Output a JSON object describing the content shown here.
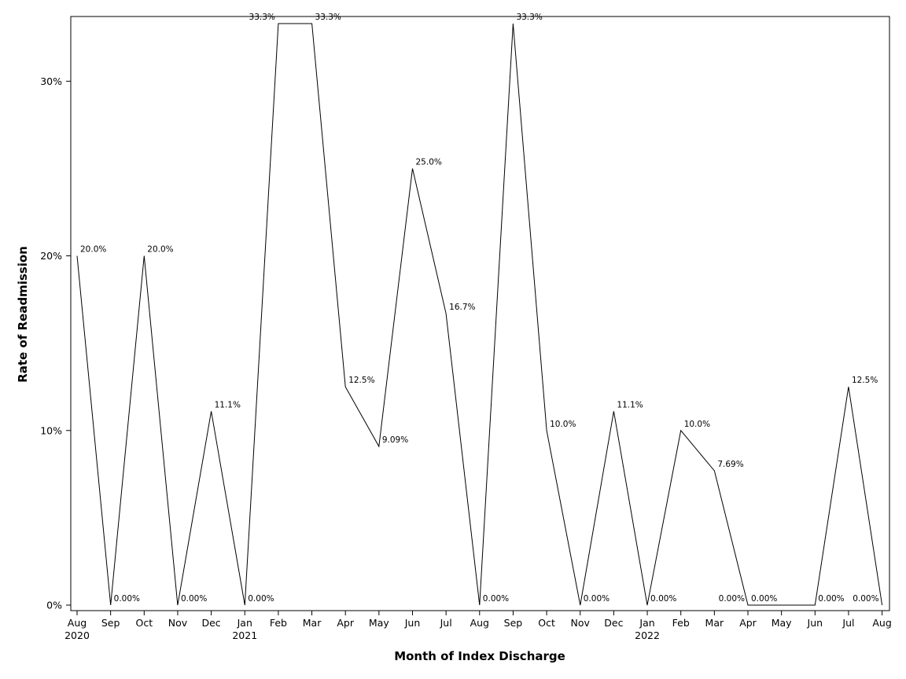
{
  "chart_data": {
    "type": "line",
    "title": "",
    "xlabel": "Month of Index Discharge",
    "ylabel": "Rate of Readmission",
    "ylim": [
      0,
      33.3
    ],
    "yticks": [
      {
        "value": 0,
        "label": "0%"
      },
      {
        "value": 10,
        "label": "10%"
      },
      {
        "value": 20,
        "label": "20%"
      },
      {
        "value": 30,
        "label": "30%"
      }
    ],
    "grid": false,
    "legend": "none",
    "categories": [
      {
        "month": "Aug",
        "year": "2020"
      },
      {
        "month": "Sep",
        "year": ""
      },
      {
        "month": "Oct",
        "year": ""
      },
      {
        "month": "Nov",
        "year": ""
      },
      {
        "month": "Dec",
        "year": ""
      },
      {
        "month": "Jan",
        "year": "2021"
      },
      {
        "month": "Feb",
        "year": ""
      },
      {
        "month": "Mar",
        "year": ""
      },
      {
        "month": "Apr",
        "year": ""
      },
      {
        "month": "May",
        "year": ""
      },
      {
        "month": "Jun",
        "year": ""
      },
      {
        "month": "Jul",
        "year": ""
      },
      {
        "month": "Aug",
        "year": ""
      },
      {
        "month": "Sep",
        "year": ""
      },
      {
        "month": "Oct",
        "year": ""
      },
      {
        "month": "Nov",
        "year": ""
      },
      {
        "month": "Dec",
        "year": ""
      },
      {
        "month": "Jan",
        "year": "2022"
      },
      {
        "month": "Feb",
        "year": ""
      },
      {
        "month": "Mar",
        "year": ""
      },
      {
        "month": "Apr",
        "year": ""
      },
      {
        "month": "May",
        "year": ""
      },
      {
        "month": "Jun",
        "year": ""
      },
      {
        "month": "Jul",
        "year": ""
      },
      {
        "month": "Aug",
        "year": ""
      }
    ],
    "series": [
      {
        "color": "#000000",
        "points": [
          {
            "x": 0,
            "y": 20.0,
            "label": "20.0%",
            "pos": "right"
          },
          {
            "x": 1,
            "y": 0,
            "label": "0.00%",
            "pos": "right"
          },
          {
            "x": 2,
            "y": 20.0,
            "label": "20.0%",
            "pos": "right"
          },
          {
            "x": 3,
            "y": 0,
            "label": "0.00%",
            "pos": "right"
          },
          {
            "x": 4,
            "y": 11.1,
            "label": "11.1%",
            "pos": "right"
          },
          {
            "x": 5,
            "y": 0,
            "label": "0.00%",
            "pos": "right"
          },
          {
            "x": 6,
            "y": 33.3,
            "label": "33.3%",
            "pos": "left"
          },
          {
            "x": 7,
            "y": 33.3,
            "label": "33.3%",
            "pos": "right"
          },
          {
            "x": 8,
            "y": 12.5,
            "label": "12.5%",
            "pos": "right"
          },
          {
            "x": 9,
            "y": 9.09,
            "label": "9.09%",
            "pos": "right"
          },
          {
            "x": 10,
            "y": 25.0,
            "label": "25.0%",
            "pos": "right"
          },
          {
            "x": 11,
            "y": 16.7,
            "label": "16.7%",
            "pos": "right"
          },
          {
            "x": 12,
            "y": 0,
            "label": "0.00%",
            "pos": "right"
          },
          {
            "x": 13,
            "y": 33.3,
            "label": "33.3%",
            "pos": "right"
          },
          {
            "x": 14,
            "y": 10.0,
            "label": "10.0%",
            "pos": "right"
          },
          {
            "x": 15,
            "y": 0,
            "label": "0.00%",
            "pos": "right"
          },
          {
            "x": 16,
            "y": 11.1,
            "label": "11.1%",
            "pos": "right"
          },
          {
            "x": 17,
            "y": 0,
            "label": "0.00%",
            "pos": "right"
          },
          {
            "x": 18,
            "y": 10.0,
            "label": "10.0%",
            "pos": "right"
          },
          {
            "x": 19,
            "y": 7.69,
            "label": "7.69%",
            "pos": "right"
          },
          {
            "x": 20,
            "y": 0,
            "label": "0.00%",
            "pos": "left"
          },
          {
            "x": 20,
            "y": 0,
            "label": "0.00%",
            "pos": "right"
          },
          {
            "x": 22,
            "y": 0,
            "label": "0.00%",
            "pos": "right"
          },
          {
            "x": 23,
            "y": 12.5,
            "label": "12.5%",
            "pos": "right"
          },
          {
            "x": 24,
            "y": 0,
            "label": "0.00%",
            "pos": "left"
          }
        ]
      }
    ]
  }
}
